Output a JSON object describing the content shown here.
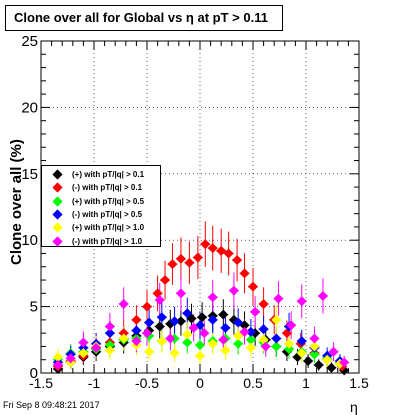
{
  "title": "Clone  over all for Global vs   η at pT > 0.11",
  "footer": "Fri Sep  8 09:48:21 2017",
  "chart_data": {
    "type": "scatter",
    "xlabel": "η",
    "ylabel": "Clone  over all (%)",
    "xlim": [
      -1.5,
      1.5
    ],
    "ylim": [
      0,
      25
    ],
    "x_ticks": [
      "-1.5",
      "-1",
      "-0.5",
      "0",
      "0.5",
      "1",
      "1.5"
    ],
    "y_ticks": [
      "0",
      "5",
      "10",
      "15",
      "20",
      "25"
    ],
    "grid": true,
    "legend_position": "left-middle",
    "series": [
      {
        "name": "(+) with pT/|q| > 0.1",
        "color": "#000000",
        "points": [
          [
            -1.34,
            0.3
          ],
          [
            -1.22,
            0.8
          ],
          [
            -1.1,
            1.2
          ],
          [
            -0.98,
            1.6
          ],
          [
            -0.85,
            2.0
          ],
          [
            -0.72,
            2.3
          ],
          [
            -0.6,
            2.8
          ],
          [
            -0.48,
            3.2
          ],
          [
            -0.38,
            3.5
          ],
          [
            -0.28,
            3.7
          ],
          [
            -0.18,
            3.9
          ],
          [
            -0.08,
            4.1
          ],
          [
            0.02,
            4.2
          ],
          [
            0.12,
            4.3
          ],
          [
            0.22,
            4.4
          ],
          [
            0.32,
            4.0
          ],
          [
            0.42,
            3.6
          ],
          [
            0.52,
            3.0
          ],
          [
            0.62,
            2.5
          ],
          [
            0.72,
            2.0
          ],
          [
            0.82,
            1.6
          ],
          [
            0.92,
            1.2
          ],
          [
            1.02,
            0.9
          ],
          [
            1.12,
            0.6
          ],
          [
            1.24,
            0.4
          ],
          [
            1.36,
            0.2
          ]
        ]
      },
      {
        "name": "(-) with pT/|q| > 0.1",
        "color": "#ff0000",
        "points": [
          [
            -1.34,
            0.5
          ],
          [
            -1.22,
            0.9
          ],
          [
            -1.1,
            1.3
          ],
          [
            -0.98,
            1.8
          ],
          [
            -0.85,
            2.3
          ],
          [
            -0.72,
            3.0
          ],
          [
            -0.6,
            4.0
          ],
          [
            -0.5,
            5.0
          ],
          [
            -0.4,
            6.0
          ],
          [
            -0.33,
            7.0
          ],
          [
            -0.26,
            8.2
          ],
          [
            -0.18,
            8.6
          ],
          [
            -0.1,
            8.3
          ],
          [
            -0.02,
            8.7
          ],
          [
            0.05,
            9.7
          ],
          [
            0.12,
            9.4
          ],
          [
            0.2,
            9.2
          ],
          [
            0.27,
            9.0
          ],
          [
            0.35,
            8.5
          ],
          [
            0.42,
            7.5
          ],
          [
            0.5,
            6.5
          ],
          [
            0.6,
            5.2
          ],
          [
            0.7,
            4.0
          ],
          [
            0.82,
            3.0
          ],
          [
            0.95,
            2.2
          ],
          [
            1.08,
            1.5
          ],
          [
            1.2,
            1.0
          ],
          [
            1.34,
            0.5
          ]
        ]
      },
      {
        "name": "(+) with pT/|q| > 0.5",
        "color": "#00ff00",
        "points": [
          [
            -1.34,
            1.0
          ],
          [
            -1.22,
            1.5
          ],
          [
            -1.1,
            1.6
          ],
          [
            -0.98,
            1.8
          ],
          [
            -0.85,
            2.1
          ],
          [
            -0.72,
            2.5
          ],
          [
            -0.6,
            2.6
          ],
          [
            -0.48,
            2.8
          ],
          [
            -0.36,
            2.4
          ],
          [
            -0.24,
            2.6
          ],
          [
            -0.12,
            2.3
          ],
          [
            0.0,
            2.1
          ],
          [
            0.12,
            2.4
          ],
          [
            0.24,
            2.6
          ],
          [
            0.36,
            2.2
          ],
          [
            0.48,
            2.5
          ],
          [
            0.6,
            2.3
          ],
          [
            0.72,
            2.0
          ],
          [
            0.84,
            1.8
          ],
          [
            0.96,
            1.6
          ],
          [
            1.08,
            1.4
          ],
          [
            1.2,
            1.1
          ],
          [
            1.32,
            0.8
          ]
        ]
      },
      {
        "name": "(-) with pT/|q| > 0.5",
        "color": "#0000ff",
        "points": [
          [
            -1.34,
            0.8
          ],
          [
            -1.22,
            1.4
          ],
          [
            -1.1,
            1.9
          ],
          [
            -0.98,
            2.2
          ],
          [
            -0.85,
            3.0
          ],
          [
            -0.72,
            2.6
          ],
          [
            -0.6,
            3.2
          ],
          [
            -0.48,
            3.8
          ],
          [
            -0.36,
            4.2
          ],
          [
            -0.24,
            3.9
          ],
          [
            -0.12,
            4.5
          ],
          [
            0.0,
            3.6
          ],
          [
            0.12,
            4.0
          ],
          [
            0.24,
            3.4
          ],
          [
            0.36,
            3.8
          ],
          [
            0.48,
            3.1
          ],
          [
            0.6,
            3.3
          ],
          [
            0.72,
            2.6
          ],
          [
            0.84,
            3.5
          ],
          [
            0.96,
            2.4
          ],
          [
            1.08,
            1.9
          ],
          [
            1.2,
            1.3
          ],
          [
            1.32,
            0.9
          ]
        ]
      },
      {
        "name": "(+) with pT/|q| > 1.0",
        "color": "#ffff00",
        "points": [
          [
            -1.34,
            1.2
          ],
          [
            -1.22,
            0.8
          ],
          [
            -1.1,
            1.5
          ],
          [
            -0.98,
            2.0
          ],
          [
            -0.85,
            1.7
          ],
          [
            -0.72,
            2.6
          ],
          [
            -0.6,
            2.1
          ],
          [
            -0.48,
            1.6
          ],
          [
            -0.36,
            2.4
          ],
          [
            -0.24,
            1.5
          ],
          [
            -0.12,
            2.9
          ],
          [
            0.0,
            1.3
          ],
          [
            0.12,
            2.2
          ],
          [
            0.24,
            1.7
          ],
          [
            0.36,
            2.8
          ],
          [
            0.48,
            1.9
          ],
          [
            0.6,
            2.5
          ],
          [
            0.72,
            4.0
          ],
          [
            0.84,
            2.2
          ],
          [
            0.96,
            1.5
          ],
          [
            1.08,
            2.0
          ],
          [
            1.2,
            1.0
          ],
          [
            1.32,
            0.7
          ]
        ]
      },
      {
        "name": "(-) with pT/|q| > 1.0",
        "color": "#ff00ff",
        "points": [
          [
            -1.34,
            0.6
          ],
          [
            -1.22,
            1.1
          ],
          [
            -1.1,
            2.3
          ],
          [
            -0.98,
            1.9
          ],
          [
            -0.85,
            3.5
          ],
          [
            -0.72,
            5.2
          ],
          [
            -0.6,
            2.4
          ],
          [
            -0.5,
            3.0
          ],
          [
            -0.38,
            5.5
          ],
          [
            -0.28,
            2.6
          ],
          [
            -0.18,
            6.0
          ],
          [
            -0.06,
            3.4
          ],
          [
            0.04,
            3.0
          ],
          [
            0.12,
            5.7
          ],
          [
            0.22,
            2.5
          ],
          [
            0.32,
            6.2
          ],
          [
            0.42,
            3.1
          ],
          [
            0.52,
            4.6
          ],
          [
            0.62,
            2.0
          ],
          [
            0.74,
            5.6
          ],
          [
            0.86,
            3.6
          ],
          [
            0.96,
            5.4
          ],
          [
            1.08,
            2.6
          ],
          [
            1.16,
            5.8
          ],
          [
            1.26,
            1.6
          ],
          [
            1.36,
            0.8
          ]
        ]
      }
    ]
  }
}
